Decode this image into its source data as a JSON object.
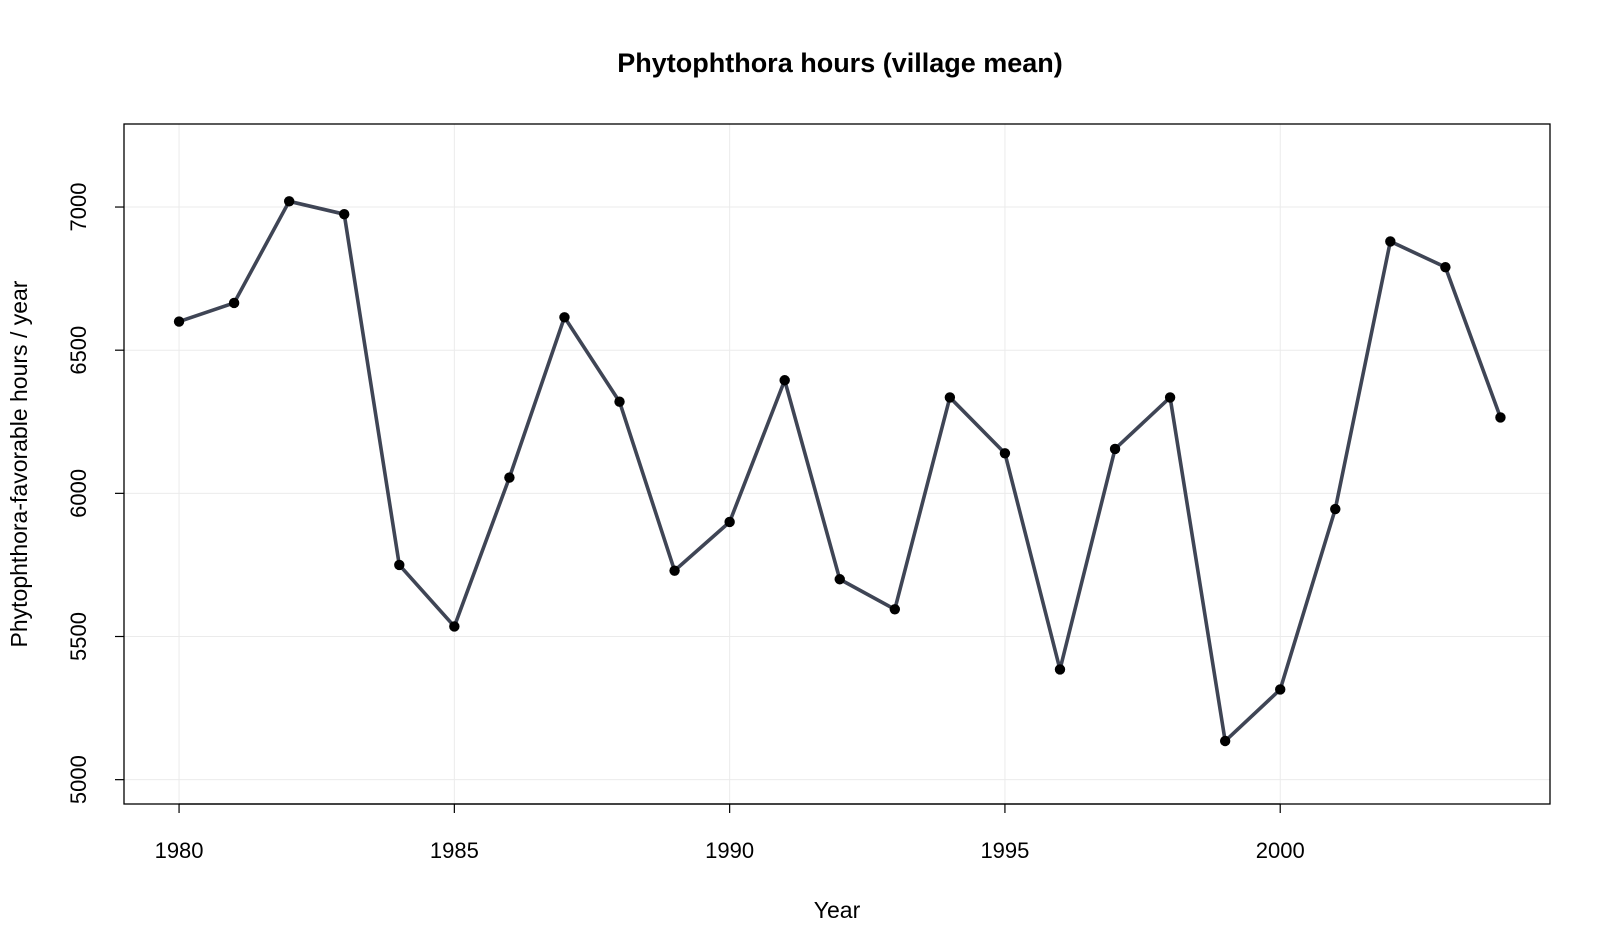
{
  "chart_data": {
    "type": "line",
    "title": "Phytophthora hours (village mean)",
    "xlabel": "Year",
    "ylabel": "Phytophthora-favorable hours / year",
    "x_ticks": [
      "1980",
      "1985",
      "1990",
      "1995",
      "2000"
    ],
    "y_ticks": [
      "5000",
      "5500",
      "6000",
      "6500",
      "7000"
    ],
    "xlim": [
      1979.0,
      2004.9
    ],
    "ylim": [
      4915,
      7290
    ],
    "grid": true,
    "line_color": "#3f4555",
    "marker_color": "#000000",
    "x": [
      1980,
      1981,
      1982,
      1983,
      1984,
      1985,
      1986,
      1987,
      1988,
      1989,
      1990,
      1991,
      1992,
      1993,
      1994,
      1995,
      1996,
      1997,
      1998,
      1999,
      2000,
      2001,
      2002,
      2003,
      2004
    ],
    "values": [
      6600,
      6665,
      7020,
      6975,
      5750,
      5535,
      6055,
      6615,
      6320,
      5730,
      5900,
      6395,
      5700,
      5595,
      6335,
      6140,
      5385,
      6155,
      6335,
      5135,
      5315,
      5945,
      6880,
      6790,
      6265
    ]
  }
}
